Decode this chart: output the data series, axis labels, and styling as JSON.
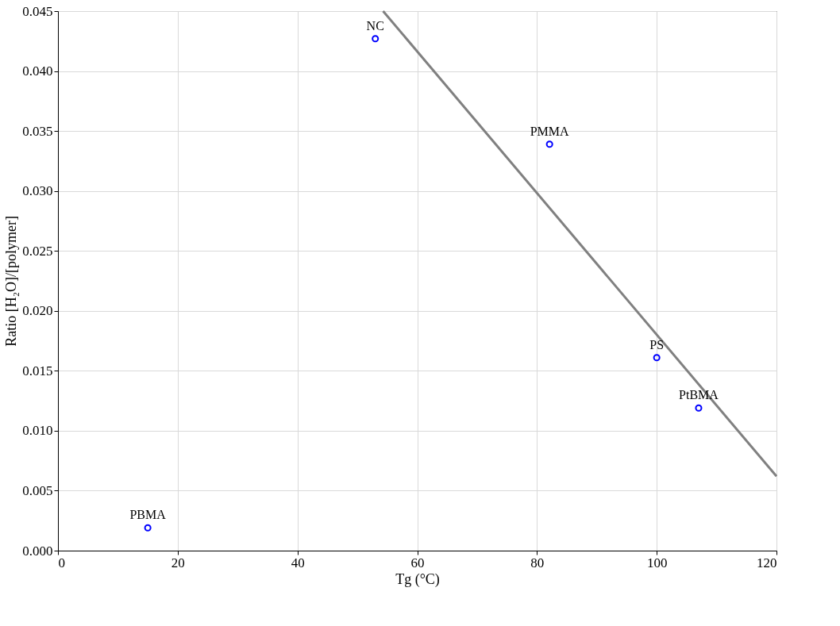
{
  "chart_data": {
    "type": "scatter",
    "xlabel": "Tg (°C)",
    "ylabel": "Ratio [H₂O]/[polymer]",
    "x": [
      15,
      53,
      82.1,
      100,
      107
    ],
    "series": [
      {
        "color": "#0000ff",
        "values": [
          0.0019,
          0.0427,
          0.0339,
          0.0161,
          0.0119
        ]
      },
      {
        "type": "line",
        "marker": "none",
        "line_style": "solid",
        "color": "#808080",
        "x": [
          54.3,
          120
        ],
        "values": [
          0.045,
          0.0062
        ]
      }
    ],
    "annotations": [
      {
        "text": "PBMA",
        "x": 15,
        "y": 0.0019
      },
      {
        "text": "NC",
        "x": 53,
        "y": 0.0427
      },
      {
        "text": "PMMA",
        "x": 82.1,
        "y": 0.0339
      },
      {
        "text": "PS",
        "x": 100,
        "y": 0.0161
      },
      {
        "text": "PtBMA",
        "x": 107,
        "y": 0.0119
      }
    ],
    "xlim": [
      0,
      120
    ],
    "xticks": [
      0,
      20,
      40,
      60,
      80,
      100,
      120
    ],
    "ylim": [
      0,
      0.045
    ],
    "yticks": [
      {
        "value": 0,
        "label": "0.000"
      },
      {
        "value": 0.005,
        "label": "0.005"
      },
      {
        "value": 0.01,
        "label": "0.010"
      },
      {
        "value": 0.015,
        "label": "0.015"
      },
      {
        "value": 0.02,
        "label": "0.020"
      },
      {
        "value": 0.025,
        "label": "0.025"
      },
      {
        "value": 0.03,
        "label": "0.030"
      },
      {
        "value": 0.035,
        "label": "0.035"
      },
      {
        "value": 0.04,
        "label": "0.040"
      },
      {
        "value": 0.045,
        "label": "0.045"
      }
    ],
    "grid": true,
    "marker": "circle"
  }
}
